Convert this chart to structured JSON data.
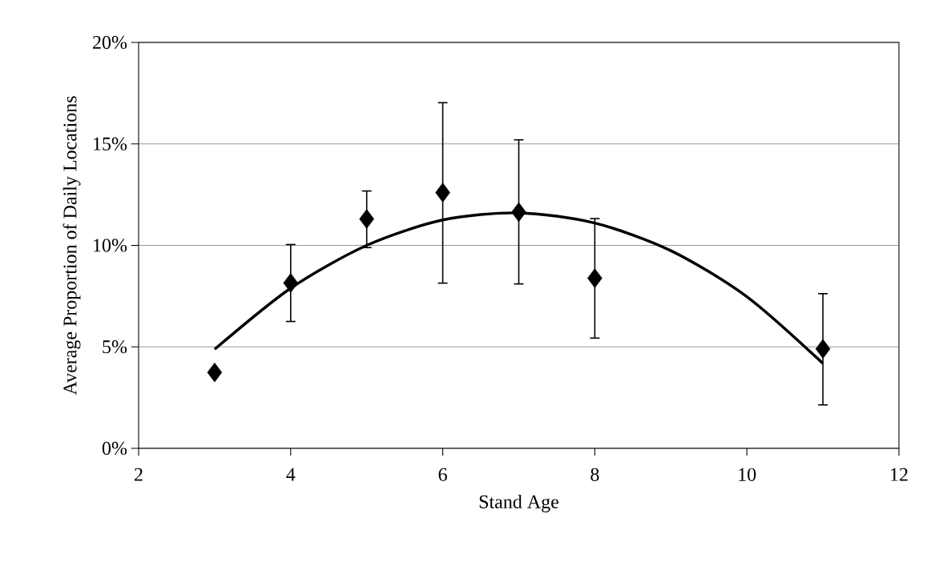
{
  "chart_data": {
    "type": "scatter",
    "xlabel": "Stand Age",
    "ylabel": "Average Proportion of Daily Locations",
    "xlim": [
      2,
      12
    ],
    "xticks": [
      2,
      4,
      6,
      8,
      10,
      12
    ],
    "ylim": [
      0,
      20
    ],
    "yticks": [
      {
        "value": 0,
        "label": "0%"
      },
      {
        "value": 5,
        "label": "5%"
      },
      {
        "value": 10,
        "label": "10%"
      },
      {
        "value": 15,
        "label": "15%"
      },
      {
        "value": 20,
        "label": "20%"
      }
    ],
    "grid": "y",
    "series": [
      {
        "color": "#000000",
        "marker": "diamond",
        "x": [
          3,
          4,
          5,
          6,
          7,
          8,
          11
        ],
        "values": [
          3.74,
          8.15,
          11.3,
          12.6,
          11.64,
          8.38,
          4.9
        ],
        "errors": [
          null,
          [
            6.25,
            10.04
          ],
          [
            9.89,
            12.68
          ],
          [
            8.14,
            17.03
          ],
          [
            8.1,
            15.2
          ],
          [
            5.43,
            11.32
          ],
          [
            2.14,
            7.62
          ]
        ]
      },
      {
        "type": "line",
        "color": "#000000",
        "marker": "none",
        "line_style": "solid",
        "x": [
          3,
          4,
          5,
          6,
          7,
          8,
          9,
          10,
          11
        ],
        "values": [
          4.88,
          7.89,
          10.0,
          11.25,
          11.6,
          11.1,
          9.74,
          7.47,
          4.18
        ]
      }
    ]
  }
}
